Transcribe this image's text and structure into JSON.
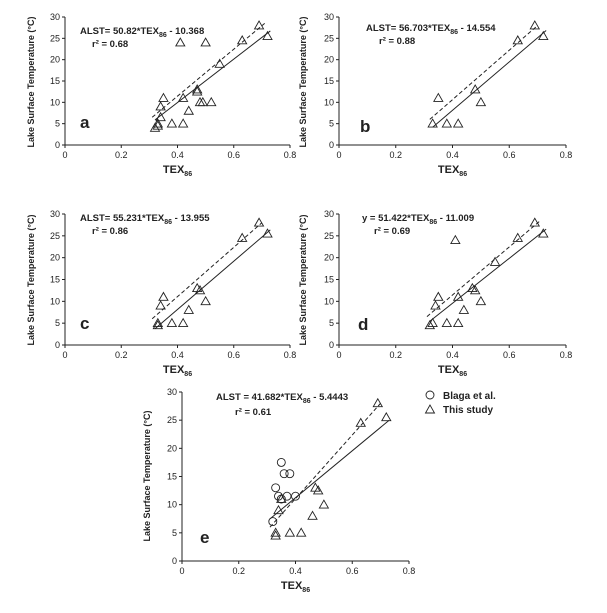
{
  "x_axis_label": "TEX",
  "x_axis_sub": "86",
  "y_axis_label": "Lake Surface Temperature (°C)",
  "chart_data": [
    {
      "type": "scatter",
      "panel": "a",
      "equation": {
        "lhs": "ALST= 50.82*TEX",
        "sub": "86",
        "rhs": " - 10.368"
      },
      "r2": "r² = 0.68",
      "xlim": [
        0,
        0.8
      ],
      "ylim": [
        0,
        30
      ],
      "x_ticks": [
        "0",
        "0.2",
        "0.4",
        "0.6",
        "0.8"
      ],
      "y_ticks": [
        "0",
        "5",
        "10",
        "15",
        "20",
        "25",
        "30"
      ],
      "regression": {
        "slope": 50.82,
        "intercept": -10.368,
        "x_range": [
          0.32,
          0.73
        ]
      },
      "dashed_line": {
        "x": [
          0.31,
          0.71
        ],
        "y": [
          6.5,
          28.5
        ]
      },
      "series": [
        {
          "marker": "triangle",
          "x": [
            0.32,
            0.33,
            0.33,
            0.34,
            0.34,
            0.35,
            0.38,
            0.41,
            0.42,
            0.42,
            0.44,
            0.47,
            0.47,
            0.48,
            0.49,
            0.5,
            0.52,
            0.55,
            0.63,
            0.69,
            0.72
          ],
          "y": [
            4.0,
            4.5,
            5.0,
            6.5,
            9.0,
            11.0,
            5.0,
            24.0,
            11.0,
            5.0,
            8.0,
            13.0,
            12.5,
            10.0,
            10.0,
            24.0,
            10.0,
            19.0,
            24.5,
            28.0,
            25.5
          ]
        }
      ]
    },
    {
      "type": "scatter",
      "panel": "b",
      "equation": {
        "lhs": "ALST= 56.703*TEX",
        "sub": "86",
        "rhs": " - 14.554"
      },
      "r2": "r² = 0.88",
      "xlim": [
        0,
        0.8
      ],
      "ylim": [
        0,
        30
      ],
      "x_ticks": [
        "0",
        "0.2",
        "0.4",
        "0.6",
        "0.8"
      ],
      "y_ticks": [
        "0",
        "5",
        "10",
        "15",
        "20",
        "25",
        "30"
      ],
      "regression": {
        "slope": 56.703,
        "intercept": -14.554,
        "x_range": [
          0.33,
          0.73
        ]
      },
      "dashed_line": {
        "x": [
          0.32,
          0.7
        ],
        "y": [
          6.0,
          28.0
        ]
      },
      "series": [
        {
          "marker": "triangle",
          "x": [
            0.33,
            0.35,
            0.38,
            0.42,
            0.48,
            0.5,
            0.63,
            0.69,
            0.72
          ],
          "y": [
            5.0,
            11.0,
            5.0,
            5.0,
            13.0,
            10.0,
            24.5,
            28.0,
            25.5
          ]
        }
      ]
    },
    {
      "type": "scatter",
      "panel": "c",
      "equation": {
        "lhs": "ALST= 55.231*TEX",
        "sub": "86",
        "rhs": " - 13.955"
      },
      "r2": "r² = 0.86",
      "xlim": [
        0,
        0.8
      ],
      "ylim": [
        0,
        30
      ],
      "x_ticks": [
        "0",
        "0.2",
        "0.4",
        "0.6",
        "0.8"
      ],
      "y_ticks": [
        "0",
        "5",
        "10",
        "15",
        "20",
        "25",
        "30"
      ],
      "regression": {
        "slope": 55.231,
        "intercept": -13.955,
        "x_range": [
          0.32,
          0.73
        ]
      },
      "dashed_line": {
        "x": [
          0.31,
          0.7
        ],
        "y": [
          6.0,
          28.0
        ]
      },
      "series": [
        {
          "marker": "triangle",
          "x": [
            0.33,
            0.33,
            0.34,
            0.35,
            0.38,
            0.42,
            0.44,
            0.47,
            0.48,
            0.5,
            0.63,
            0.69,
            0.72
          ],
          "y": [
            4.5,
            5.0,
            9.0,
            11.0,
            5.0,
            5.0,
            8.0,
            13.0,
            12.5,
            10.0,
            24.5,
            28.0,
            25.5
          ]
        }
      ]
    },
    {
      "type": "scatter",
      "panel": "d",
      "equation": {
        "lhs": "y = 51.422*TEX",
        "sub": "86",
        "rhs": " - 11.009"
      },
      "r2": "r² = 0.69",
      "xlim": [
        0,
        0.8
      ],
      "ylim": [
        0,
        30
      ],
      "x_ticks": [
        "0",
        "0.2",
        "0.4",
        "0.6",
        "0.8"
      ],
      "y_ticks": [
        "0",
        "5",
        "10",
        "15",
        "20",
        "25",
        "30"
      ],
      "regression": {
        "slope": 51.422,
        "intercept": -11.009,
        "x_range": [
          0.32,
          0.73
        ]
      },
      "dashed_line": {
        "x": [
          0.31,
          0.71
        ],
        "y": [
          6.5,
          28.5
        ]
      },
      "series": [
        {
          "marker": "triangle",
          "x": [
            0.32,
            0.33,
            0.34,
            0.35,
            0.38,
            0.41,
            0.42,
            0.42,
            0.44,
            0.47,
            0.48,
            0.5,
            0.55,
            0.63,
            0.69,
            0.72
          ],
          "y": [
            4.5,
            5.0,
            9.0,
            11.0,
            5.0,
            24.0,
            11.0,
            5.0,
            8.0,
            13.0,
            12.5,
            10.0,
            19.0,
            24.5,
            28.0,
            25.5
          ]
        }
      ]
    },
    {
      "type": "scatter",
      "panel": "e",
      "equation": {
        "lhs": "ALST = 41.682*TEX",
        "sub": "86",
        "rhs": " - 5.4443"
      },
      "r2": "r²  = 0.61",
      "xlim": [
        0,
        0.8
      ],
      "ylim": [
        0,
        30
      ],
      "x_ticks": [
        "0",
        "0.2",
        "0.4",
        "0.6",
        "0.8"
      ],
      "y_ticks": [
        "0",
        "5",
        "10",
        "15",
        "20",
        "25",
        "30"
      ],
      "regression": {
        "slope": 41.682,
        "intercept": -5.4443,
        "x_range": [
          0.31,
          0.73
        ]
      },
      "dashed_line": {
        "x": [
          0.31,
          0.7
        ],
        "y": [
          6.0,
          28.0
        ]
      },
      "legend": [
        "Blaga et al.",
        "This study"
      ],
      "series": [
        {
          "name": "Blaga et al.",
          "marker": "circle",
          "x": [
            0.32,
            0.33,
            0.34,
            0.35,
            0.36,
            0.37,
            0.38,
            0.4,
            0.35
          ],
          "y": [
            7.0,
            13.0,
            11.5,
            17.5,
            15.5,
            11.5,
            15.5,
            11.5,
            11.0
          ]
        },
        {
          "name": "This study",
          "marker": "triangle",
          "x": [
            0.33,
            0.33,
            0.34,
            0.35,
            0.38,
            0.42,
            0.46,
            0.47,
            0.48,
            0.5,
            0.63,
            0.69,
            0.72
          ],
          "y": [
            4.5,
            5.0,
            9.0,
            11.0,
            5.0,
            5.0,
            8.0,
            13.0,
            12.5,
            10.0,
            24.5,
            28.0,
            25.5
          ]
        }
      ]
    }
  ]
}
